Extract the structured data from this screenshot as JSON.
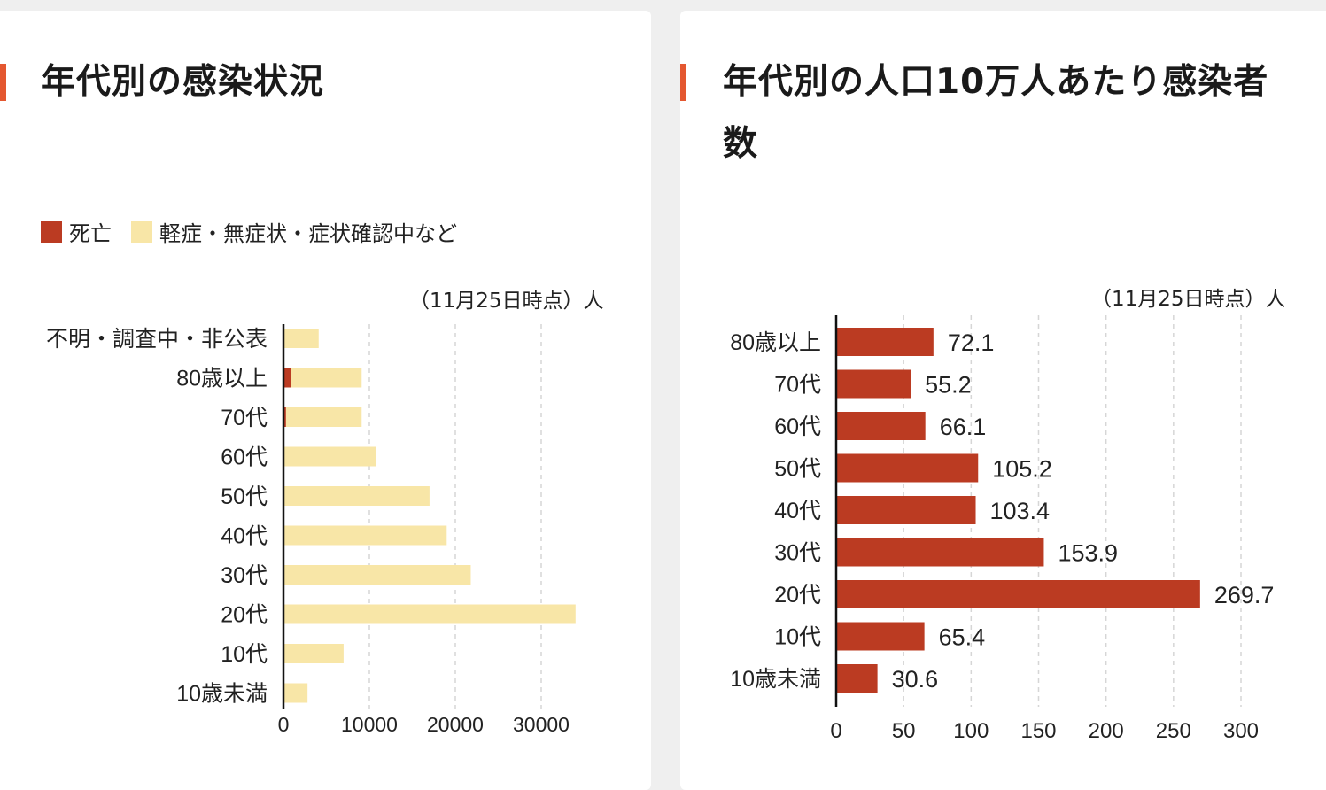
{
  "left_card": {
    "title": "年代別の感染状況",
    "note": "（11月25日時点）人"
  },
  "right_card": {
    "title_line1": "年代別の人口10万人あたり感染者",
    "title_line2": "数",
    "note": "（11月25日時点）人"
  },
  "colors": {
    "death": "#bb3b22",
    "mild": "#f8e6a7",
    "rate": "#bb3b22",
    "accent": "#e45730"
  },
  "chart_data": [
    {
      "type": "bar",
      "orientation": "horizontal",
      "stacked": true,
      "categories": [
        "不明・調査中・非公表",
        "80歳以上",
        "70代",
        "60代",
        "50代",
        "40代",
        "30代",
        "20代",
        "10代",
        "10歳未満"
      ],
      "series": [
        {
          "name": "死亡",
          "color": "#bb3b22",
          "values": [
            0,
            900,
            300,
            0,
            0,
            0,
            0,
            0,
            0,
            0
          ]
        },
        {
          "name": "軽症・無症状・症状確認中など",
          "color": "#f8e6a7",
          "values": [
            4100,
            8200,
            8800,
            10800,
            17000,
            19000,
            21800,
            34000,
            7000,
            2800
          ]
        }
      ],
      "xticks": [
        "0",
        "10000",
        "20000",
        "30000"
      ],
      "xlim": [
        0,
        36000
      ],
      "grid": true,
      "legend": "top-left"
    },
    {
      "type": "bar",
      "orientation": "horizontal",
      "categories": [
        "80歳以上",
        "70代",
        "60代",
        "50代",
        "40代",
        "30代",
        "20代",
        "10代",
        "10歳未満"
      ],
      "values": [
        72.1,
        55.2,
        66.1,
        105.2,
        103.4,
        153.9,
        269.7,
        65.4,
        30.6
      ],
      "value_labels": [
        "72.1",
        "55.2",
        "66.1",
        "105.2",
        "103.4",
        "153.9",
        "269.7",
        "65.4",
        "30.6"
      ],
      "xticks": [
        "0",
        "50",
        "100",
        "150",
        "200",
        "250",
        "300"
      ],
      "xlim": [
        0,
        300
      ],
      "grid": true
    }
  ]
}
